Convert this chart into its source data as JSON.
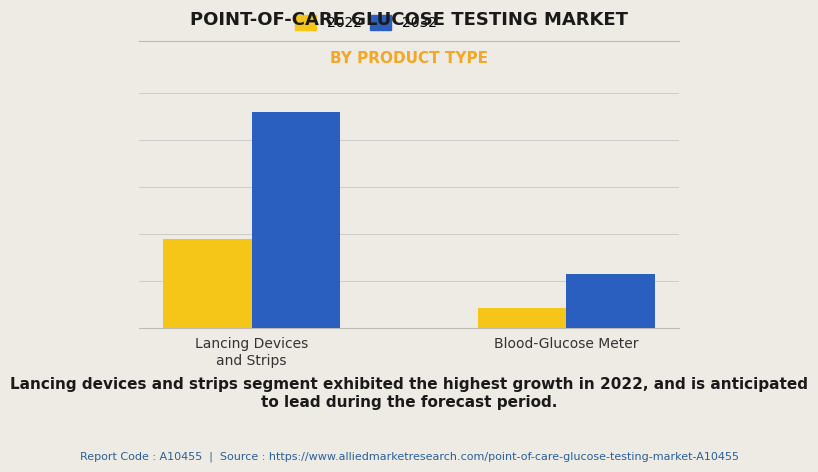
{
  "title": "POINT-OF-CARE GLUCOSE TESTING MARKET",
  "subtitle": "BY PRODUCT TYPE",
  "categories": [
    "Lancing Devices\nand Strips",
    "Blood-Glucose Meter"
  ],
  "years": [
    "2022",
    "2032"
  ],
  "values": {
    "2022": [
      3.8,
      0.85
    ],
    "2032": [
      9.2,
      2.3
    ]
  },
  "bar_colors": {
    "2022": "#F5C518",
    "2032": "#2A5FBF"
  },
  "background_color": "#EEEAE4",
  "title_fontsize": 13,
  "subtitle_fontsize": 11,
  "subtitle_color": "#F5A623",
  "legend_fontsize": 10,
  "tick_label_fontsize": 10,
  "bar_width": 0.28,
  "ylim": [
    0,
    10.5
  ],
  "grid_color": "#CCCCCC",
  "annotation_text": "Lancing devices and strips segment exhibited the highest growth in 2022, and is anticipated\nto lead during the forecast period.",
  "footer_text": "Report Code : A10455  |  Source : https://www.alliedmarketresearch.com/point-of-care-glucose-testing-market-A10455",
  "footer_color": "#2A6099",
  "annotation_fontsize": 11,
  "footer_fontsize": 8,
  "spine_color": "#BBBBBB"
}
